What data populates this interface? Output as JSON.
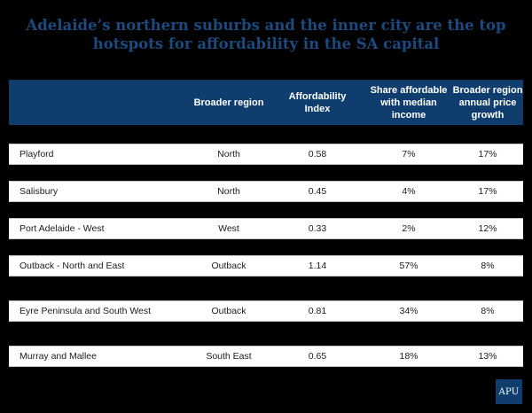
{
  "title": "Adelaide’s northern suburbs and the inner city are the top hotspots for affordability in the SA capital",
  "colors": {
    "header_bg": "#0f3e6e",
    "title": "#1a4a80",
    "row_bg": "#ffffff",
    "page_bg": "#000000"
  },
  "table": {
    "columns": [
      "",
      "Broader region",
      "Affordability Index",
      "Share affordable with median income",
      "Broader region annual price growth"
    ],
    "rows": [
      {
        "name": "Playford",
        "region": "North",
        "index": "0.58",
        "share": "7%",
        "growth": "17%"
      },
      {
        "name": "Salisbury",
        "region": "North",
        "index": "0.45",
        "share": "4%",
        "growth": "17%"
      },
      {
        "name": "Port Adelaide - West",
        "region": "West",
        "index": "0.33",
        "share": "2%",
        "growth": "12%"
      },
      {
        "name": "Outback - North and East",
        "region": "Outback",
        "index": "1.14",
        "share": "57%",
        "growth": "8%"
      },
      {
        "name": "Eyre Peninsula and South West",
        "region": "Outback",
        "index": "0.81",
        "share": "34%",
        "growth": "8%"
      },
      {
        "name": "Murray and Mallee",
        "region": "South East",
        "index": "0.65",
        "share": "18%",
        "growth": "13%"
      }
    ]
  },
  "logo": "APU"
}
